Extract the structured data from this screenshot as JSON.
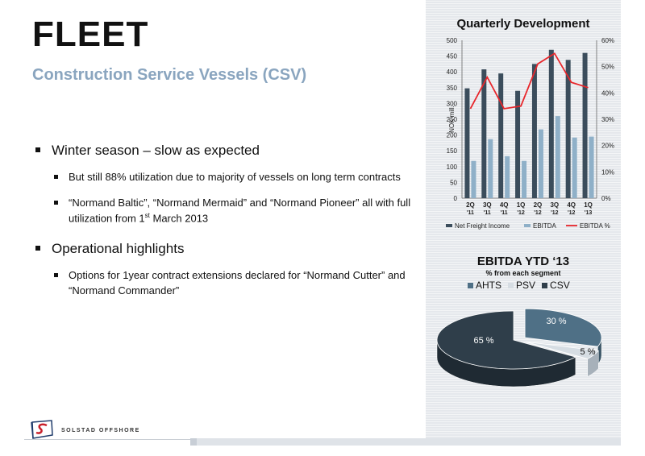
{
  "slide": {
    "title": "FLEET",
    "subtitle": "Construction Service Vessels (CSV)"
  },
  "bullets": [
    {
      "text": "Winter season – slow as expected",
      "level": 1
    },
    {
      "text": "But still 88% utilization due to majority of vessels on long term contracts",
      "level": 2
    },
    {
      "text_before": "“Normand Baltic”, “Normand Mermaid” and “Normand Pioneer” all with full utilization from 1",
      "sup": "st",
      "text_after": " March 2013",
      "level": 2
    },
    {
      "text": "Operational highlights",
      "level": 1
    },
    {
      "text": "Options for 1year contract extensions declared for “Normand Cutter” and “Normand Commander”",
      "level": 2
    }
  ],
  "brand": {
    "name": "SOLSTAD OFFSHORE"
  },
  "colors": {
    "dark_bar": "#3b4d5c",
    "light_bar": "#8fb0c8",
    "line": "#e8262b",
    "pie_ahts": "#4f7086",
    "pie_psv": "#d6dde3",
    "pie_csv": "#2f3e4a"
  },
  "chart_data": [
    {
      "type": "bar",
      "title": "Quarterly Development",
      "ylabel": "NOK mill.",
      "categories": [
        "2Q '11",
        "3Q '11",
        "4Q '11",
        "1Q '12",
        "2Q '12",
        "3Q '12",
        "4Q '12",
        "1Q '13"
      ],
      "category_lines": [
        [
          "2Q",
          "'11"
        ],
        [
          "3Q",
          "'11"
        ],
        [
          "4Q",
          "'11"
        ],
        [
          "1Q",
          "'12"
        ],
        [
          "2Q",
          "'12"
        ],
        [
          "3Q",
          "'12"
        ],
        [
          "4Q",
          "'12"
        ],
        [
          "1Q",
          "'13"
        ]
      ],
      "y_ticks": [
        "0",
        "50",
        "100",
        "150",
        "200",
        "250",
        "300",
        "350",
        "400",
        "450",
        "500"
      ],
      "y2_ticks": [
        "0%",
        "10%",
        "20%",
        "30%",
        "40%",
        "50%",
        "60%"
      ],
      "ylim": [
        0,
        500
      ],
      "y2lim": [
        0,
        60
      ],
      "grid": false,
      "legend_position": "bottom",
      "series": [
        {
          "name": "Net Freight Income",
          "kind": "bar",
          "values": [
            348,
            408,
            395,
            340,
            425,
            470,
            438,
            460
          ]
        },
        {
          "name": "EBITDA",
          "kind": "bar",
          "values": [
            118,
            187,
            133,
            118,
            218,
            260,
            192,
            195
          ]
        },
        {
          "name": "EBITDA %",
          "kind": "line",
          "axis": "right",
          "values": [
            34,
            46,
            34,
            35,
            51,
            55,
            44,
            42
          ]
        }
      ]
    },
    {
      "type": "pie",
      "title": "EBITDA YTD ‘13",
      "subtitle": "% from each segment",
      "legend_position": "top",
      "slices": [
        {
          "name": "AHTS",
          "value": 30,
          "label": "30 %"
        },
        {
          "name": "PSV",
          "value": 5,
          "label": "5 %"
        },
        {
          "name": "CSV",
          "value": 65,
          "label": "65 %"
        }
      ]
    }
  ]
}
